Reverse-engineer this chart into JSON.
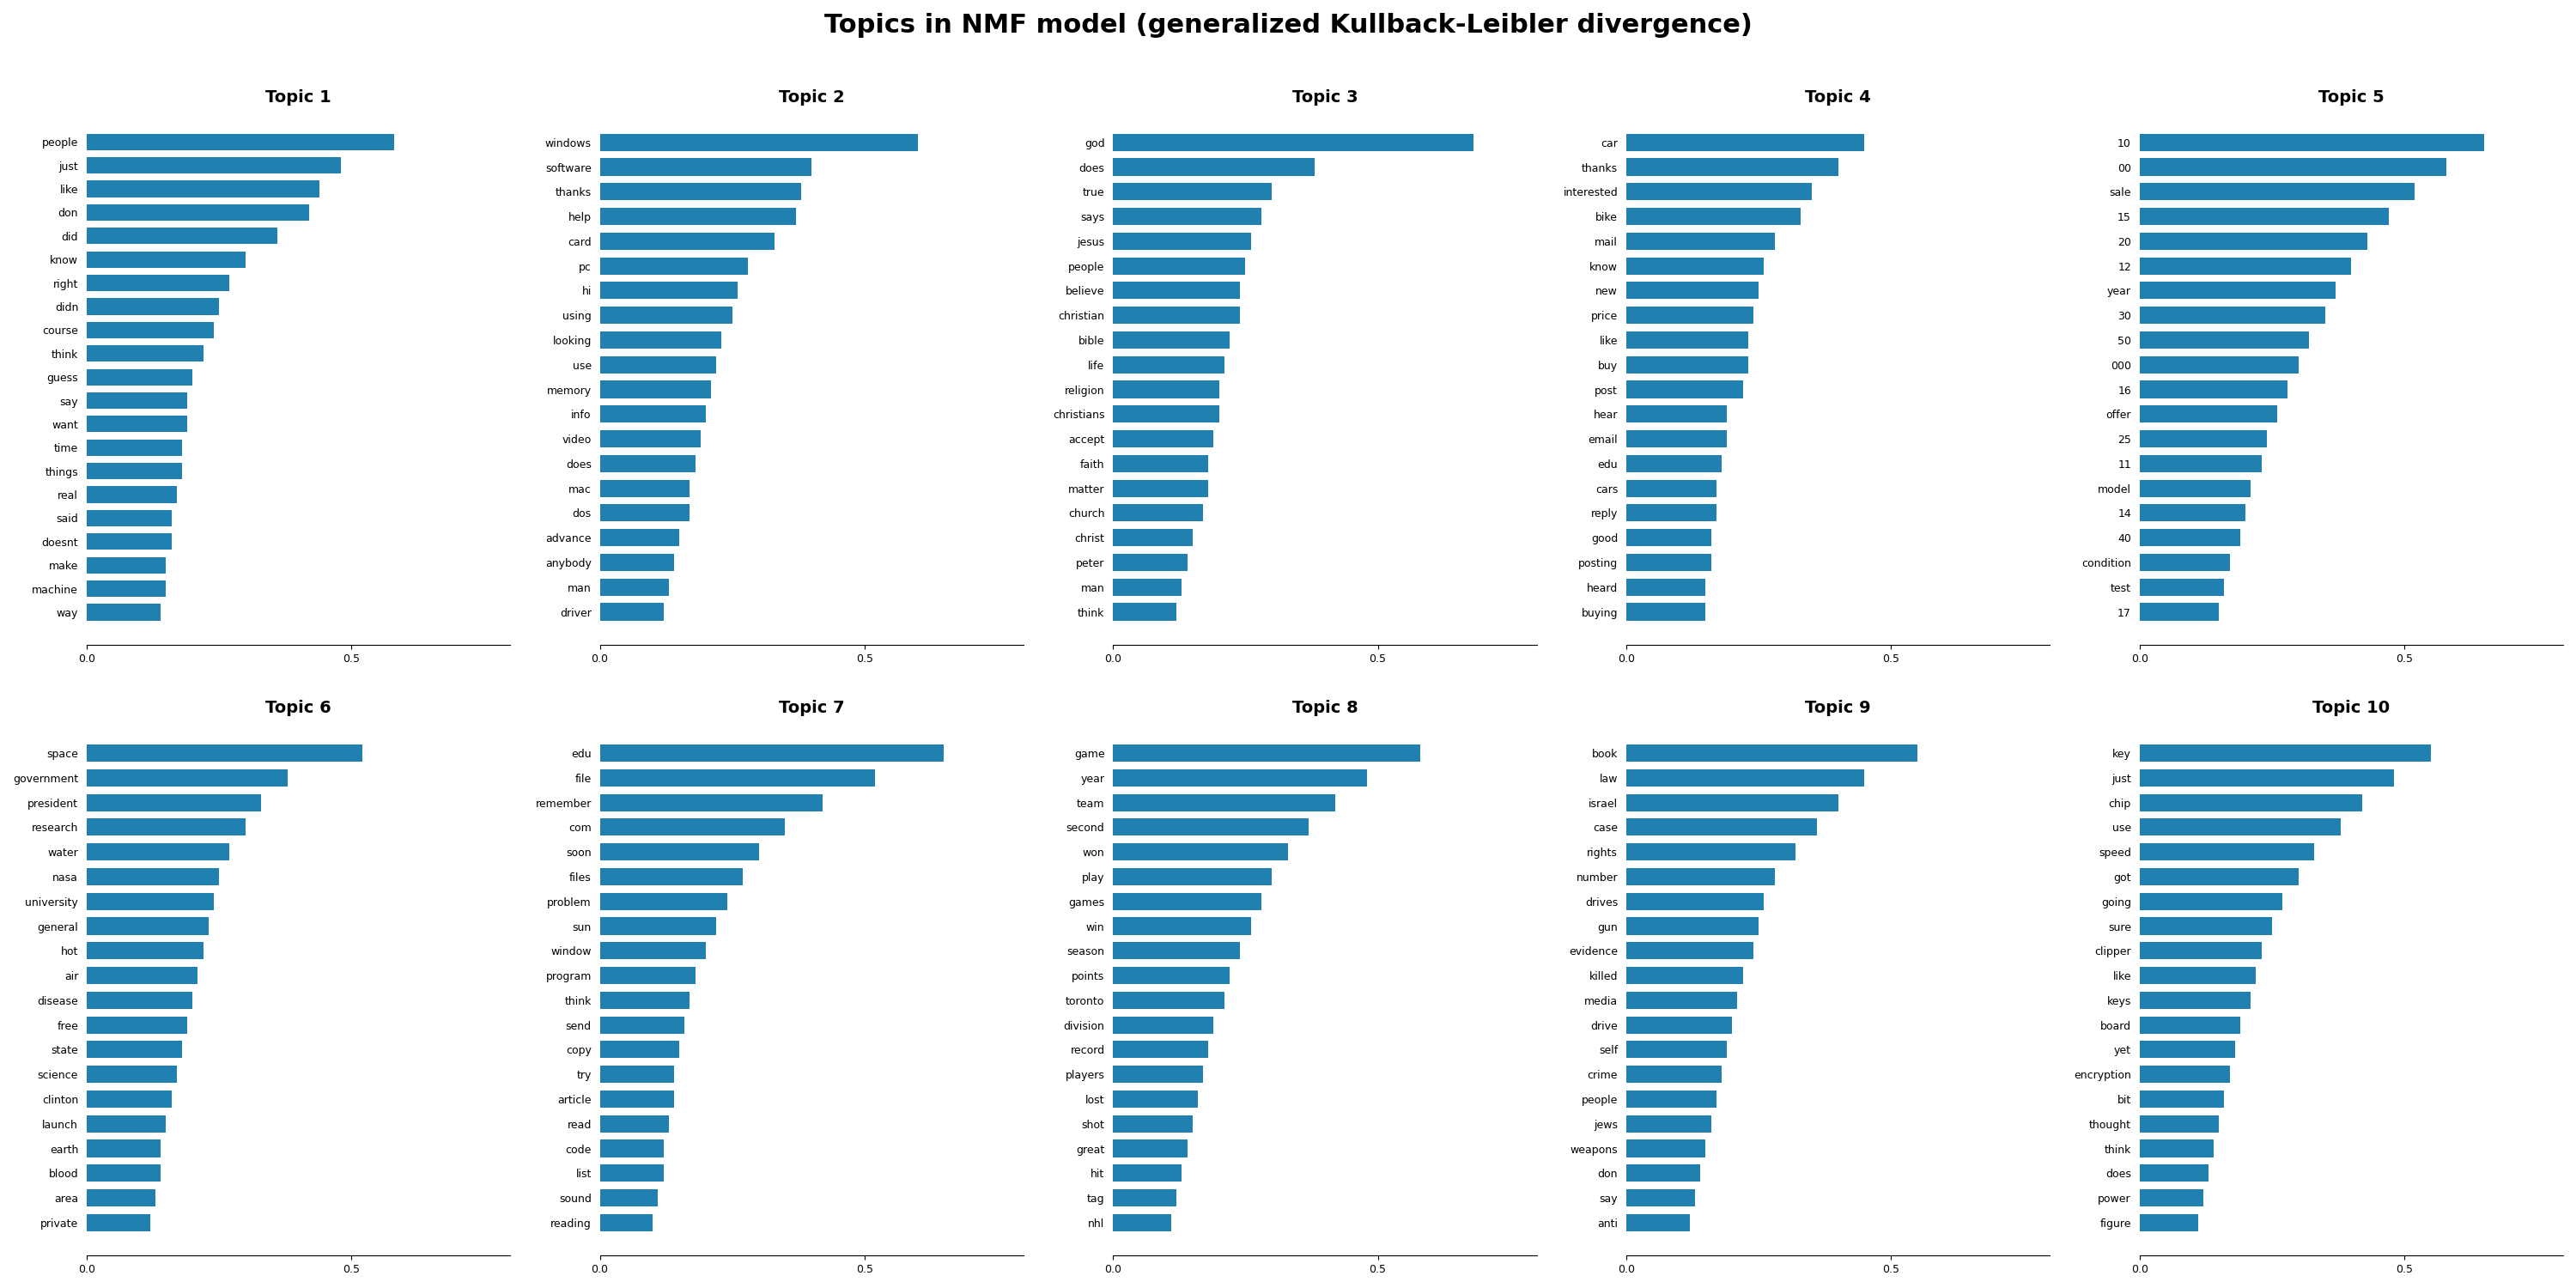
{
  "title": "Topics in NMF model (generalized Kullback-Leibler divergence)",
  "bar_color": "#2080b0",
  "topics": [
    {
      "title": "Topic 1",
      "words": [
        "people",
        "just",
        "like",
        "don",
        "did",
        "know",
        "right",
        "didn",
        "course",
        "think",
        "guess",
        "say",
        "want",
        "time",
        "things",
        "real",
        "said",
        "doesnt",
        "make",
        "machine",
        "way"
      ],
      "values": [
        0.58,
        0.48,
        0.44,
        0.42,
        0.36,
        0.3,
        0.27,
        0.25,
        0.24,
        0.22,
        0.2,
        0.19,
        0.19,
        0.18,
        0.18,
        0.17,
        0.16,
        0.16,
        0.15,
        0.15,
        0.14
      ]
    },
    {
      "title": "Topic 2",
      "words": [
        "windows",
        "software",
        "thanks",
        "help",
        "card",
        "pc",
        "hi",
        "using",
        "looking",
        "use",
        "memory",
        "info",
        "video",
        "does",
        "mac",
        "dos",
        "advance",
        "anybody",
        "man",
        "driver"
      ],
      "values": [
        0.6,
        0.4,
        0.38,
        0.37,
        0.33,
        0.28,
        0.26,
        0.25,
        0.23,
        0.22,
        0.21,
        0.2,
        0.19,
        0.18,
        0.17,
        0.17,
        0.15,
        0.14,
        0.13,
        0.12
      ]
    },
    {
      "title": "Topic 3",
      "words": [
        "god",
        "does",
        "true",
        "says",
        "jesus",
        "people",
        "believe",
        "christian",
        "bible",
        "life",
        "religion",
        "christians",
        "accept",
        "faith",
        "matter",
        "church",
        "christ",
        "peter",
        "man",
        "think"
      ],
      "values": [
        0.68,
        0.38,
        0.3,
        0.28,
        0.26,
        0.25,
        0.24,
        0.24,
        0.22,
        0.21,
        0.2,
        0.2,
        0.19,
        0.18,
        0.18,
        0.17,
        0.15,
        0.14,
        0.13,
        0.12
      ]
    },
    {
      "title": "Topic 4",
      "words": [
        "car",
        "thanks",
        "interested",
        "bike",
        "mail",
        "know",
        "new",
        "price",
        "like",
        "buy",
        "post",
        "hear",
        "email",
        "edu",
        "cars",
        "reply",
        "good",
        "posting",
        "heard",
        "buying"
      ],
      "values": [
        0.45,
        0.4,
        0.35,
        0.33,
        0.28,
        0.26,
        0.25,
        0.24,
        0.23,
        0.23,
        0.22,
        0.19,
        0.19,
        0.18,
        0.17,
        0.17,
        0.16,
        0.16,
        0.15,
        0.15
      ]
    },
    {
      "title": "Topic 5",
      "words": [
        "10",
        "00",
        "sale",
        "15",
        "20",
        "12",
        "year",
        "30",
        "50",
        "000",
        "16",
        "offer",
        "25",
        "11",
        "model",
        "14",
        "40",
        "condition",
        "test",
        "17"
      ],
      "values": [
        0.65,
        0.58,
        0.52,
        0.47,
        0.43,
        0.4,
        0.37,
        0.35,
        0.32,
        0.3,
        0.28,
        0.26,
        0.24,
        0.23,
        0.21,
        0.2,
        0.19,
        0.17,
        0.16,
        0.15
      ]
    },
    {
      "title": "Topic 6",
      "words": [
        "space",
        "government",
        "president",
        "research",
        "water",
        "nasa",
        "university",
        "general",
        "hot",
        "air",
        "disease",
        "free",
        "state",
        "science",
        "clinton",
        "launch",
        "earth",
        "blood",
        "area",
        "private"
      ],
      "values": [
        0.52,
        0.38,
        0.33,
        0.3,
        0.27,
        0.25,
        0.24,
        0.23,
        0.22,
        0.21,
        0.2,
        0.19,
        0.18,
        0.17,
        0.16,
        0.15,
        0.14,
        0.14,
        0.13,
        0.12
      ]
    },
    {
      "title": "Topic 7",
      "words": [
        "edu",
        "file",
        "remember",
        "com",
        "soon",
        "files",
        "problem",
        "sun",
        "window",
        "program",
        "think",
        "send",
        "copy",
        "try",
        "article",
        "read",
        "code",
        "list",
        "sound",
        "reading"
      ],
      "values": [
        0.65,
        0.52,
        0.42,
        0.35,
        0.3,
        0.27,
        0.24,
        0.22,
        0.2,
        0.18,
        0.17,
        0.16,
        0.15,
        0.14,
        0.14,
        0.13,
        0.12,
        0.12,
        0.11,
        0.1
      ]
    },
    {
      "title": "Topic 8",
      "words": [
        "game",
        "year",
        "team",
        "second",
        "won",
        "play",
        "games",
        "win",
        "season",
        "points",
        "toronto",
        "division",
        "record",
        "players",
        "lost",
        "shot",
        "great",
        "hit",
        "tag",
        "nhl"
      ],
      "values": [
        0.58,
        0.48,
        0.42,
        0.37,
        0.33,
        0.3,
        0.28,
        0.26,
        0.24,
        0.22,
        0.21,
        0.19,
        0.18,
        0.17,
        0.16,
        0.15,
        0.14,
        0.13,
        0.12,
        0.11
      ]
    },
    {
      "title": "Topic 9",
      "words": [
        "book",
        "law",
        "israel",
        "case",
        "rights",
        "number",
        "drives",
        "gun",
        "evidence",
        "killed",
        "media",
        "drive",
        "self",
        "crime",
        "people",
        "jews",
        "weapons",
        "don",
        "say",
        "anti"
      ],
      "values": [
        0.55,
        0.45,
        0.4,
        0.36,
        0.32,
        0.28,
        0.26,
        0.25,
        0.24,
        0.22,
        0.21,
        0.2,
        0.19,
        0.18,
        0.17,
        0.16,
        0.15,
        0.14,
        0.13,
        0.12
      ]
    },
    {
      "title": "Topic 10",
      "words": [
        "key",
        "just",
        "chip",
        "use",
        "speed",
        "got",
        "going",
        "sure",
        "clipper",
        "like",
        "keys",
        "board",
        "yet",
        "encryption",
        "bit",
        "thought",
        "think",
        "does",
        "power",
        "figure"
      ],
      "values": [
        0.55,
        0.48,
        0.42,
        0.38,
        0.33,
        0.3,
        0.27,
        0.25,
        0.23,
        0.22,
        0.21,
        0.19,
        0.18,
        0.17,
        0.16,
        0.15,
        0.14,
        0.13,
        0.12,
        0.11
      ]
    }
  ]
}
